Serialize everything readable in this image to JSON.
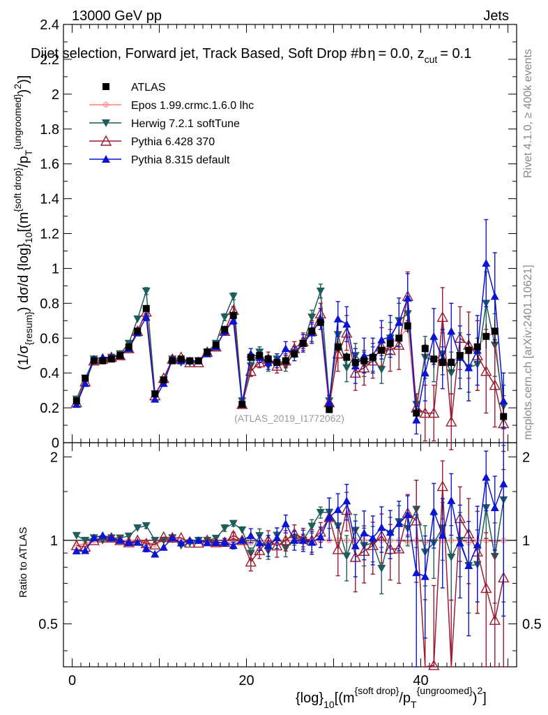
{
  "header": {
    "left": "13000 GeV pp",
    "right": "Jets"
  },
  "chart_data": {
    "type": "line",
    "title": "Dijet selection, Forward jet, Track Based, Soft Drop #b",
    "title_suffix": "= 0.0, z",
    "title_sub": "cut",
    "title_tail": "= 0.1",
    "title_beta_symbol": "η",
    "ylabel": "(1/σ{resum}) dσ/d{log}10[(m^{soft drop}/p_T^{ungroomed})^2]",
    "ylabel_parts": {
      "a": "(1/σ",
      "a_sub": "{resum}",
      "b": ") dσ/d {log}",
      "b_sub": "10",
      "c": "[(m",
      "c_sup": "{soft drop}",
      "d": "/p",
      "d_sub": "T",
      "d_sup": "{ungroomed}",
      "e": ")",
      "e_sup": "2",
      "f": ")]"
    },
    "xlabel_parts": {
      "a": "{log}",
      "a_sub": "10",
      "b": "[(m",
      "b_sup": "{soft drop}",
      "c": "/p",
      "c_sub": "T",
      "c_sup": "{ungroomed}",
      "d": ")",
      "d_sup": "2",
      "e": "]"
    },
    "ratio_ylabel": "Ratio to ATLAS",
    "analysis_id": "(ATLAS_2019_I1772062)",
    "side_right_top": "Rivet 4.1.0, ≥ 400k events",
    "side_right_bottom": "mcplots.cern.ch [arXiv:2401.10621]",
    "xlim": [
      -1,
      51
    ],
    "ylim": [
      0,
      2.4
    ],
    "ratio_ylim": [
      0.35,
      2.25
    ],
    "x_ticks": [
      "0",
      "20",
      "40"
    ],
    "y_ticks": [
      "0",
      "0.2",
      "0.4",
      "0.6",
      "0.8",
      "1",
      "1.2",
      "1.4",
      "1.6",
      "1.8",
      "2",
      "2.2",
      "2.4"
    ],
    "ratio_ticks": [
      "0.5",
      "1",
      "2"
    ],
    "x": [
      0.5,
      1.5,
      2.5,
      3.5,
      4.5,
      5.5,
      6.5,
      7.5,
      8.5,
      9.5,
      10.5,
      11.5,
      12.5,
      13.5,
      14.5,
      15.5,
      16.5,
      17.5,
      18.5,
      19.5,
      20.5,
      21.5,
      22.5,
      23.5,
      24.5,
      25.5,
      26.5,
      27.5,
      28.5,
      29.5,
      30.5,
      31.5,
      32.5,
      33.5,
      34.5,
      35.5,
      36.5,
      37.5,
      38.5,
      39.5,
      40.5,
      41.5,
      42.5,
      43.5,
      44.5,
      45.5,
      46.5,
      47.5,
      48.5,
      49.5
    ],
    "series": [
      {
        "name": "ATLAS",
        "style": "data",
        "color": "#000000",
        "values": [
          0.24,
          0.37,
          0.47,
          0.47,
          0.48,
          0.5,
          0.55,
          0.64,
          0.77,
          0.28,
          0.36,
          0.47,
          0.48,
          0.47,
          0.47,
          0.52,
          0.56,
          0.65,
          0.73,
          0.22,
          0.49,
          0.5,
          0.48,
          0.46,
          0.47,
          0.51,
          0.57,
          0.64,
          0.69,
          0.19,
          0.55,
          0.49,
          0.46,
          0.47,
          0.49,
          0.53,
          0.57,
          0.6,
          0.67,
          0.17,
          0.54,
          0.48,
          0.46,
          0.46,
          0.5,
          0.53,
          0.55,
          0.61,
          0.64,
          0.15
        ],
        "errors": [
          0.01,
          0.01,
          0.01,
          0.01,
          0.01,
          0.01,
          0.01,
          0.01,
          0.02,
          0.01,
          0.01,
          0.01,
          0.01,
          0.01,
          0.01,
          0.01,
          0.01,
          0.02,
          0.02,
          0.01,
          0.02,
          0.02,
          0.02,
          0.02,
          0.02,
          0.02,
          0.02,
          0.02,
          0.02,
          0.02,
          0.03,
          0.03,
          0.03,
          0.03,
          0.03,
          0.03,
          0.03,
          0.04,
          0.04,
          0.03,
          0.05,
          0.05,
          0.05,
          0.05,
          0.05,
          0.06,
          0.06,
          0.07,
          0.07,
          0.05
        ]
      },
      {
        "name": "Epos 1.99.crmc.1.6.0 lhc",
        "style": "epos",
        "color": "#ff8080",
        "values": [
          0.23,
          0.36,
          0.47,
          0.48,
          0.49,
          0.5,
          0.55,
          0.64,
          0.76,
          0.27,
          0.36,
          0.47,
          0.48,
          0.47,
          0.47,
          0.52,
          0.55,
          0.64,
          0.72,
          0.22,
          0.48,
          0.5,
          0.48,
          0.46,
          0.47,
          0.51,
          0.56,
          0.64,
          0.69,
          0.19,
          0.55,
          0.49,
          0.46,
          0.47,
          0.49,
          0.53,
          0.57,
          0.6,
          0.66,
          0.17,
          0.53,
          0.48,
          0.46,
          0.46,
          0.5,
          0.52,
          0.55,
          0.61,
          0.63,
          0.15
        ]
      },
      {
        "name": "Herwig 7.2.1 softTune",
        "style": "herwig",
        "color": "#1f5c5c",
        "values": [
          0.25,
          0.37,
          0.48,
          0.47,
          0.49,
          0.51,
          0.57,
          0.71,
          0.87,
          0.28,
          0.36,
          0.48,
          0.46,
          0.46,
          0.47,
          0.52,
          0.57,
          0.72,
          0.84,
          0.24,
          0.44,
          0.52,
          0.44,
          0.48,
          0.44,
          0.52,
          0.57,
          0.72,
          0.87,
          0.24,
          0.62,
          0.43,
          0.5,
          0.45,
          0.48,
          0.42,
          0.6,
          0.7,
          0.74,
          0.22,
          0.49,
          0.47,
          0.51,
          0.4,
          0.5,
          0.43,
          0.45,
          0.8,
          0.56,
          0.21
        ],
        "errors": [
          0.01,
          0.01,
          0.01,
          0.01,
          0.01,
          0.01,
          0.01,
          0.01,
          0.02,
          0.01,
          0.01,
          0.01,
          0.01,
          0.01,
          0.01,
          0.01,
          0.01,
          0.02,
          0.02,
          0.01,
          0.02,
          0.03,
          0.03,
          0.03,
          0.03,
          0.03,
          0.03,
          0.04,
          0.04,
          0.03,
          0.08,
          0.08,
          0.07,
          0.07,
          0.07,
          0.08,
          0.09,
          0.1,
          0.1,
          0.06,
          0.12,
          0.12,
          0.12,
          0.12,
          0.13,
          0.14,
          0.15,
          0.18,
          0.18,
          0.12
        ]
      },
      {
        "name": "Pythia 6.428 370",
        "style": "p6",
        "color": "#9b1b30",
        "values": [
          0.23,
          0.35,
          0.47,
          0.48,
          0.49,
          0.5,
          0.54,
          0.64,
          0.75,
          0.27,
          0.37,
          0.48,
          0.49,
          0.46,
          0.46,
          0.52,
          0.55,
          0.64,
          0.76,
          0.22,
          0.41,
          0.46,
          0.48,
          0.44,
          0.47,
          0.54,
          0.58,
          0.64,
          0.74,
          0.23,
          0.51,
          0.63,
          0.4,
          0.43,
          0.47,
          0.55,
          0.53,
          0.56,
          0.84,
          0.2,
          0.17,
          0.17,
          0.72,
          0.12,
          0.6,
          0.56,
          0.5,
          0.41,
          0.33,
          0.11
        ],
        "errors": [
          0.01,
          0.01,
          0.01,
          0.01,
          0.01,
          0.01,
          0.01,
          0.01,
          0.02,
          0.01,
          0.01,
          0.01,
          0.01,
          0.01,
          0.01,
          0.01,
          0.01,
          0.02,
          0.02,
          0.01,
          0.03,
          0.03,
          0.04,
          0.04,
          0.04,
          0.04,
          0.05,
          0.06,
          0.06,
          0.04,
          0.1,
          0.1,
          0.1,
          0.1,
          0.1,
          0.11,
          0.12,
          0.14,
          0.14,
          0.08,
          0.16,
          0.16,
          0.17,
          0.16,
          0.18,
          0.19,
          0.2,
          0.24,
          0.24,
          0.16
        ]
      },
      {
        "name": "Pythia 8.315 default",
        "style": "p8",
        "color": "#0a14d2",
        "values": [
          0.22,
          0.34,
          0.48,
          0.49,
          0.49,
          0.5,
          0.54,
          0.63,
          0.72,
          0.25,
          0.34,
          0.48,
          0.47,
          0.47,
          0.47,
          0.51,
          0.55,
          0.64,
          0.7,
          0.22,
          0.51,
          0.49,
          0.46,
          0.47,
          0.54,
          0.51,
          0.57,
          0.63,
          0.71,
          0.23,
          0.71,
          0.68,
          0.44,
          0.5,
          0.5,
          0.59,
          0.61,
          0.69,
          0.83,
          0.13,
          0.4,
          0.61,
          0.48,
          0.64,
          0.49,
          0.43,
          0.53,
          1.03,
          0.84,
          0.24
        ],
        "errors": [
          0.01,
          0.01,
          0.01,
          0.01,
          0.01,
          0.01,
          0.01,
          0.01,
          0.02,
          0.01,
          0.01,
          0.01,
          0.01,
          0.01,
          0.01,
          0.01,
          0.01,
          0.02,
          0.02,
          0.01,
          0.03,
          0.03,
          0.04,
          0.04,
          0.04,
          0.04,
          0.05,
          0.06,
          0.06,
          0.04,
          0.1,
          0.1,
          0.1,
          0.1,
          0.1,
          0.11,
          0.12,
          0.14,
          0.14,
          0.08,
          0.16,
          0.16,
          0.17,
          0.16,
          0.18,
          0.19,
          0.2,
          0.25,
          0.25,
          0.16
        ]
      }
    ]
  }
}
